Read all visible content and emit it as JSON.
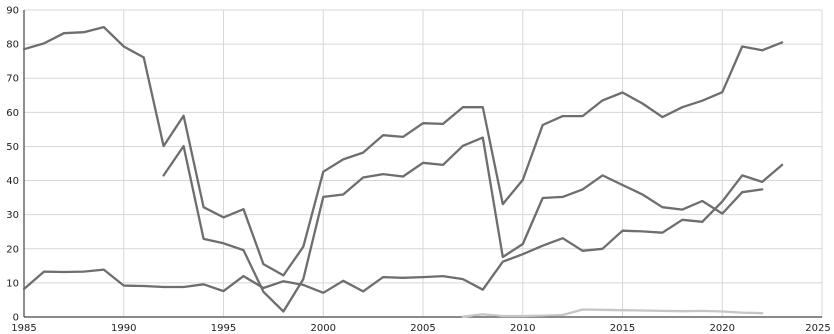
{
  "chart_data": {
    "type": "line",
    "title": "",
    "xlabel": "",
    "ylabel": "",
    "xlim": [
      1985,
      2025
    ],
    "ylim": [
      0,
      90
    ],
    "x_ticks": [
      1985,
      1990,
      1995,
      2000,
      2005,
      2010,
      2015,
      2020,
      2025
    ],
    "y_ticks": [
      0,
      10,
      20,
      30,
      40,
      50,
      60,
      70,
      80,
      90
    ],
    "grid": true,
    "legend": "none",
    "series": [
      {
        "color": "#6e6e6e",
        "x": [
          1985,
          1986,
          1987,
          1988,
          1989,
          1990,
          1991,
          1992,
          1993,
          1994,
          1995,
          1996,
          1997,
          1998,
          1999,
          2000,
          2001,
          2002,
          2003,
          2004,
          2005,
          2006,
          2007,
          2008,
          2009,
          2010,
          2011,
          2012,
          2013,
          2014,
          2015,
          2016,
          2017,
          2018,
          2019,
          2020,
          2021,
          2022,
          2023
        ],
        "values": [
          78.5,
          80.2,
          83.2,
          83.5,
          85.0,
          79.3,
          76.1,
          50.1,
          59.0,
          32.2,
          29.2,
          31.6,
          15.5,
          12.2,
          20.6,
          42.6,
          46.2,
          48.2,
          53.3,
          52.8,
          56.8,
          56.6,
          61.5,
          61.5,
          33.1,
          40.2,
          56.3,
          58.9,
          58.9,
          63.5,
          65.8,
          62.6,
          58.6,
          61.5,
          63.4,
          65.9,
          79.3,
          78.2,
          80.5
        ]
      },
      {
        "color": "#6e6e6e",
        "x": [
          1992,
          1993,
          1994,
          1995,
          1996,
          1997,
          1998,
          1999,
          2000,
          2001,
          2002,
          2003,
          2004,
          2005,
          2006,
          2007,
          2008,
          2009,
          2010,
          2011,
          2012,
          2013,
          2014,
          2015,
          2016,
          2017,
          2018,
          2019,
          2020,
          2021,
          2022
        ],
        "values": [
          41.5,
          50.1,
          22.9,
          21.6,
          19.6,
          7.4,
          1.6,
          11.1,
          35.2,
          35.9,
          40.9,
          41.9,
          41.2,
          45.2,
          44.6,
          50.2,
          52.6,
          17.6,
          21.4,
          34.9,
          35.2,
          37.4,
          41.5,
          38.7,
          35.9,
          32.2,
          31.5,
          34.0,
          30.3,
          36.6,
          37.4
        ]
      },
      {
        "color": "#6e6e6e",
        "x": [
          1985,
          1986,
          1987,
          1988,
          1989,
          1990,
          1991,
          1992,
          1993,
          1994,
          1995,
          1996,
          1997,
          1998,
          1999,
          2000,
          2001,
          2002,
          2003,
          2004,
          2005,
          2006,
          2007,
          2008,
          2009,
          2010,
          2011,
          2012,
          2013,
          2014,
          2015,
          2016,
          2017,
          2018,
          2019,
          2020,
          2021,
          2022,
          2023
        ],
        "values": [
          8.2,
          13.3,
          13.2,
          13.3,
          13.9,
          9.2,
          9.1,
          8.8,
          8.8,
          9.6,
          7.6,
          12.0,
          8.5,
          10.5,
          9.4,
          7.1,
          10.6,
          7.5,
          11.7,
          11.5,
          11.7,
          12.0,
          11.1,
          8.0,
          16.2,
          18.4,
          20.9,
          23.1,
          19.4,
          20.0,
          25.3,
          25.1,
          24.7,
          28.5,
          27.9,
          33.9,
          41.5,
          39.6,
          44.6
        ]
      },
      {
        "color": "#c6c6c6",
        "x": [
          2007,
          2008,
          2009,
          2010,
          2011,
          2012,
          2013,
          2014,
          2015,
          2016,
          2017,
          2018,
          2019,
          2020,
          2021,
          2022
        ],
        "values": [
          0.1,
          0.8,
          0.3,
          0.3,
          0.4,
          0.6,
          2.2,
          2.1,
          2.0,
          1.9,
          1.8,
          1.7,
          1.8,
          1.6,
          1.3,
          1.1
        ]
      }
    ]
  }
}
